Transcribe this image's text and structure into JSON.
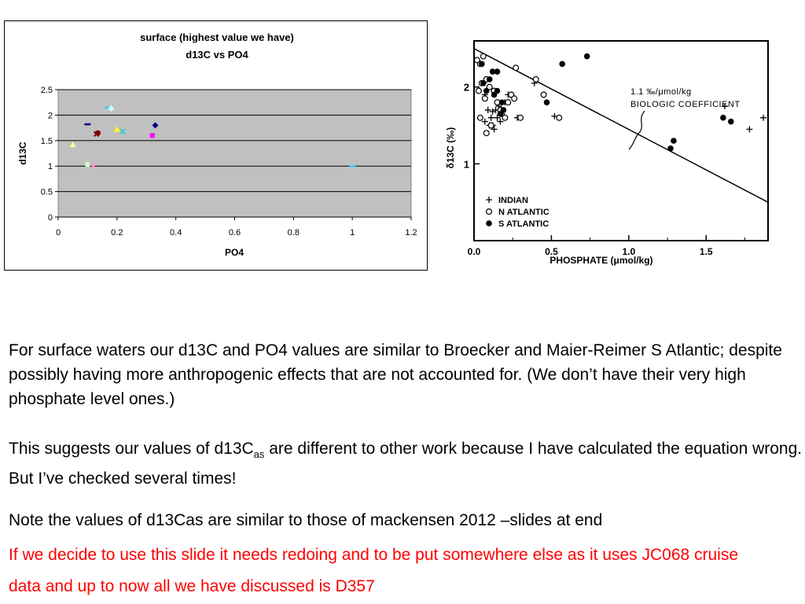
{
  "chart_data": [
    {
      "type": "scatter",
      "title": "surface (highest value we have)",
      "subtitle": "d13C vs PO4",
      "xlabel": "PO4",
      "ylabel": "d13C",
      "xlim": [
        0,
        1.2
      ],
      "ylim": [
        0,
        2.5
      ],
      "xticks": [
        "0",
        "0.2",
        "0.4",
        "0.6",
        "0.8",
        "1",
        "1.2"
      ],
      "yticks": [
        "0",
        "0.5",
        "1",
        "1.5",
        "2",
        "2.5"
      ],
      "grid": "horizontal",
      "plot_background": "#c0c0c0",
      "points": [
        {
          "x": 0.05,
          "y": 1.42,
          "marker": "triangle",
          "color": "#ffff99"
        },
        {
          "x": 0.1,
          "y": 1.03,
          "marker": "square",
          "color": "#ccffcc"
        },
        {
          "x": 0.12,
          "y": 1.0,
          "marker": "cross",
          "color": "#ff99cc"
        },
        {
          "x": 0.1,
          "y": 1.82,
          "marker": "dash",
          "color": "#000080"
        },
        {
          "x": 0.13,
          "y": 1.63,
          "marker": "star",
          "color": "#800000"
        },
        {
          "x": 0.135,
          "y": 1.65,
          "marker": "circle",
          "color": "#800000"
        },
        {
          "x": 0.17,
          "y": 2.15,
          "marker": "dash",
          "color": "#33ccff"
        },
        {
          "x": 0.18,
          "y": 2.13,
          "marker": "diamond",
          "color": "#ccffff"
        },
        {
          "x": 0.2,
          "y": 1.72,
          "marker": "triangle",
          "color": "#ffff00"
        },
        {
          "x": 0.22,
          "y": 1.68,
          "marker": "cross",
          "color": "#33cccc"
        },
        {
          "x": 0.32,
          "y": 1.6,
          "marker": "square",
          "color": "#ff00ff"
        },
        {
          "x": 0.33,
          "y": 1.8,
          "marker": "diamond",
          "color": "#000080"
        },
        {
          "x": 1.0,
          "y": 1.0,
          "marker": "dash",
          "color": "#33ccff"
        }
      ]
    },
    {
      "type": "scatter",
      "xlabel": "PHOSPHATE (μmol/kg)",
      "ylabel": "δ13C (‰)",
      "xlim": [
        0.0,
        1.9
      ],
      "ylim": [
        0,
        2.6
      ],
      "xticks": [
        "0.0",
        "0.5",
        "1.0",
        "1.5"
      ],
      "yticks": [
        "1",
        "2"
      ],
      "annotation": [
        "1.1 ‰/μmol/kg",
        "BIOLOGIC COEFFICIENT"
      ],
      "line": [
        {
          "x": 0.0,
          "y": 2.5
        },
        {
          "x": 1.9,
          "y": 0.5
        }
      ],
      "legend": {
        "position": "bottom-left",
        "entries": [
          "INDIAN",
          "N ATLANTIC",
          "S ATLANTIC"
        ]
      },
      "series": [
        {
          "name": "INDIAN",
          "marker": "plus",
          "points": [
            [
              0.07,
              1.9
            ],
            [
              0.09,
              1.7
            ],
            [
              0.11,
              1.6
            ],
            [
              0.12,
              1.5
            ],
            [
              0.13,
              1.45
            ],
            [
              0.14,
              1.7
            ],
            [
              0.15,
              1.6
            ],
            [
              0.16,
              1.75
            ],
            [
              0.17,
              1.55
            ],
            [
              0.18,
              1.65
            ],
            [
              0.2,
              1.8
            ],
            [
              0.22,
              1.9
            ],
            [
              0.07,
              1.55
            ],
            [
              0.28,
              1.6
            ],
            [
              0.39,
              2.05
            ],
            [
              0.52,
              1.62
            ],
            [
              1.62,
              1.75
            ],
            [
              1.78,
              1.45
            ],
            [
              1.87,
              1.6
            ],
            [
              0.1,
              1.5
            ],
            [
              0.12,
              1.68
            ]
          ]
        },
        {
          "name": "N ATLANTIC",
          "marker": "open-circle",
          "points": [
            [
              0.02,
              2.35
            ],
            [
              0.04,
              2.3
            ],
            [
              0.06,
              2.4
            ],
            [
              0.05,
              2.05
            ],
            [
              0.03,
              1.95
            ],
            [
              0.08,
              2.1
            ],
            [
              0.1,
              2.0
            ],
            [
              0.07,
              1.85
            ],
            [
              0.04,
              1.6
            ],
            [
              0.13,
              1.95
            ],
            [
              0.15,
              1.8
            ],
            [
              0.17,
              1.7
            ],
            [
              0.2,
              1.6
            ],
            [
              0.22,
              1.8
            ],
            [
              0.24,
              1.9
            ],
            [
              0.26,
              1.85
            ],
            [
              0.3,
              1.6
            ],
            [
              0.27,
              2.25
            ],
            [
              0.4,
              2.1
            ],
            [
              0.45,
              1.9
            ],
            [
              0.55,
              1.6
            ],
            [
              0.11,
              1.5
            ],
            [
              0.08,
              1.4
            ]
          ]
        },
        {
          "name": "S ATLANTIC",
          "marker": "filled-circle",
          "points": [
            [
              0.05,
              2.3
            ],
            [
              0.12,
              2.2
            ],
            [
              0.15,
              2.2
            ],
            [
              0.1,
              2.1
            ],
            [
              0.06,
              2.05
            ],
            [
              0.08,
              1.95
            ],
            [
              0.13,
              1.9
            ],
            [
              0.15,
              1.95
            ],
            [
              0.18,
              1.8
            ],
            [
              0.17,
              1.65
            ],
            [
              0.19,
              1.7
            ],
            [
              0.47,
              1.8
            ],
            [
              0.57,
              2.3
            ],
            [
              0.73,
              2.4
            ],
            [
              1.27,
              1.2
            ],
            [
              1.29,
              1.3
            ],
            [
              1.61,
              1.6
            ],
            [
              1.66,
              1.55
            ]
          ]
        }
      ]
    }
  ],
  "paragraphs": {
    "p1": "For surface waters our d13C and PO4 values are similar to Broecker and Maier-Reimer S Atlantic; despite possibly having more anthropogenic effects that are not accounted for. (We don’t have their very high phosphate level ones.)",
    "p2_before": "This suggests our values of d13C",
    "p2_sub": "as",
    "p2_after": " are different to other work because I have calculated the equation wrong. But I’ve checked several times!",
    "p3": "Note the values of d13Cas are similar to those of mackensen 2012 –slides at end",
    "p4": "If we decide to use this slide it needs redoing and to be put somewhere else as it uses JC068 cruise data and up to now all we have discussed is D357"
  },
  "colors": {
    "note_text": "#ff0000",
    "plot_background": "#c0c0c0"
  }
}
